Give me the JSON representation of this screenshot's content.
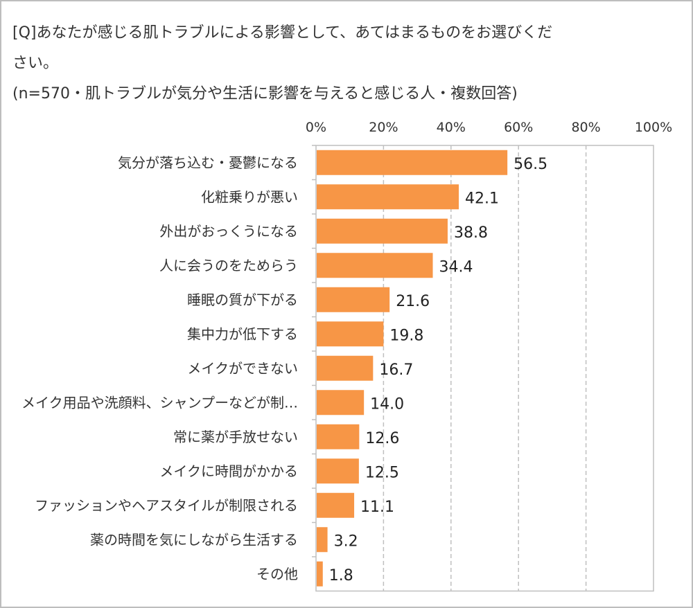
{
  "chart_data": {
    "type": "bar",
    "orientation": "horizontal",
    "title": "[Q]あなたが感じる肌トラブルによる影響として、あてはまるものをお選びください。",
    "subtitle": "(n=570・肌トラブルが気分や生活に影響を与えると感じる人・複数回答)",
    "categories": [
      "気分が落ち込む・憂鬱になる",
      "化粧乗りが悪い",
      "外出がおっくうになる",
      "人に会うのをためらう",
      "睡眠の質が下がる",
      "集中力が低下する",
      "メイクができない",
      "メイク用品や洗顔料、シャンプーなどが制…",
      "常に薬が手放せない",
      "メイクに時間がかかる",
      "ファッションやヘアスタイルが制限される",
      "薬の時間を気にしながら生活する",
      "その他"
    ],
    "values": [
      56.5,
      42.1,
      38.8,
      34.4,
      21.6,
      19.8,
      16.7,
      14.0,
      12.6,
      12.5,
      11.1,
      3.2,
      1.8
    ],
    "value_labels": [
      "56.5",
      "42.1",
      "38.8",
      "34.4",
      "21.6",
      "19.8",
      "16.7",
      "14.0",
      "12.6",
      "12.5",
      "11.1",
      "3.2",
      "1.8"
    ],
    "xlim": [
      0,
      100
    ],
    "tick_labels": [
      "0%",
      "20%",
      "40%",
      "60%",
      "80%",
      "100%"
    ],
    "ticks": [
      0,
      20,
      40,
      60,
      80,
      100
    ],
    "axis_position": "top",
    "grid": "dashed vertical",
    "bar_color": "#F79646"
  }
}
